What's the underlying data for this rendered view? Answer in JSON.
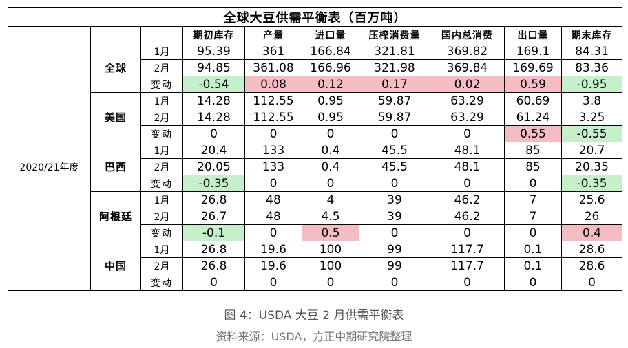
{
  "chart_data": {
    "type": "table",
    "title": "全球大豆供需平衡表（百万吨）",
    "year": "2020/21年度",
    "columns": [
      "期初库存",
      "产量",
      "进口量",
      "压榨消费量",
      "国内总消费",
      "出口量",
      "期末库存"
    ],
    "regions": [
      {
        "name": "全球",
        "rows": [
          {
            "label": "1月",
            "kind": "value",
            "values": [
              "95.39",
              "361",
              "166.84",
              "321.81",
              "369.82",
              "169.1",
              "84.31"
            ]
          },
          {
            "label": "2月",
            "kind": "value",
            "values": [
              "94.85",
              "361.08",
              "166.96",
              "321.98",
              "369.84",
              "169.69",
              "83.36"
            ]
          },
          {
            "label": "变动",
            "kind": "change",
            "values": [
              "-0.54",
              "0.08",
              "0.12",
              "0.17",
              "0.02",
              "0.59",
              "-0.95"
            ]
          }
        ]
      },
      {
        "name": "美国",
        "rows": [
          {
            "label": "1月",
            "kind": "value",
            "values": [
              "14.28",
              "112.55",
              "0.95",
              "59.87",
              "63.29",
              "60.69",
              "3.8"
            ]
          },
          {
            "label": "2月",
            "kind": "value",
            "values": [
              "14.28",
              "112.55",
              "0.95",
              "59.87",
              "63.29",
              "61.24",
              "3.25"
            ]
          },
          {
            "label": "变动",
            "kind": "change",
            "values": [
              "0",
              "0",
              "0",
              "0",
              "0",
              "0.55",
              "-0.55"
            ]
          }
        ]
      },
      {
        "name": "巴西",
        "rows": [
          {
            "label": "1月",
            "kind": "value",
            "values": [
              "20.4",
              "133",
              "0.4",
              "45.5",
              "48.1",
              "85",
              "20.7"
            ]
          },
          {
            "label": "2月",
            "kind": "value",
            "values": [
              "20.05",
              "133",
              "0.4",
              "45.5",
              "48.1",
              "85",
              "20.35"
            ]
          },
          {
            "label": "变动",
            "kind": "change",
            "values": [
              "-0.35",
              "0",
              "0",
              "0",
              "0",
              "0",
              "-0.35"
            ]
          }
        ]
      },
      {
        "name": "阿根廷",
        "rows": [
          {
            "label": "1月",
            "kind": "value",
            "values": [
              "26.8",
              "48",
              "4",
              "39",
              "46.2",
              "7",
              "25.6"
            ]
          },
          {
            "label": "2月",
            "kind": "value",
            "values": [
              "26.7",
              "48",
              "4.5",
              "39",
              "46.2",
              "7",
              "26"
            ]
          },
          {
            "label": "变动",
            "kind": "change",
            "values": [
              "-0.1",
              "0",
              "0.5",
              "0",
              "0",
              "0",
              "0.4"
            ]
          }
        ]
      },
      {
        "name": "中国",
        "rows": [
          {
            "label": "1月",
            "kind": "value",
            "values": [
              "26.8",
              "19.6",
              "100",
              "99",
              "117.7",
              "0.1",
              "28.6"
            ]
          },
          {
            "label": "2月",
            "kind": "value",
            "values": [
              "26.8",
              "19.6",
              "100",
              "99",
              "117.7",
              "0.1",
              "28.6"
            ]
          },
          {
            "label": "变动",
            "kind": "change",
            "values": [
              "0",
              "0",
              "0",
              "0",
              "0",
              "0",
              "0"
            ]
          }
        ]
      }
    ],
    "colors": {
      "increase": "#f5bcc3",
      "decrease": "#c6efcc"
    }
  },
  "caption": "图 4：USDA 大豆 2 月供需平衡表",
  "source": "资料来源：USDA，方正中期研究院整理"
}
